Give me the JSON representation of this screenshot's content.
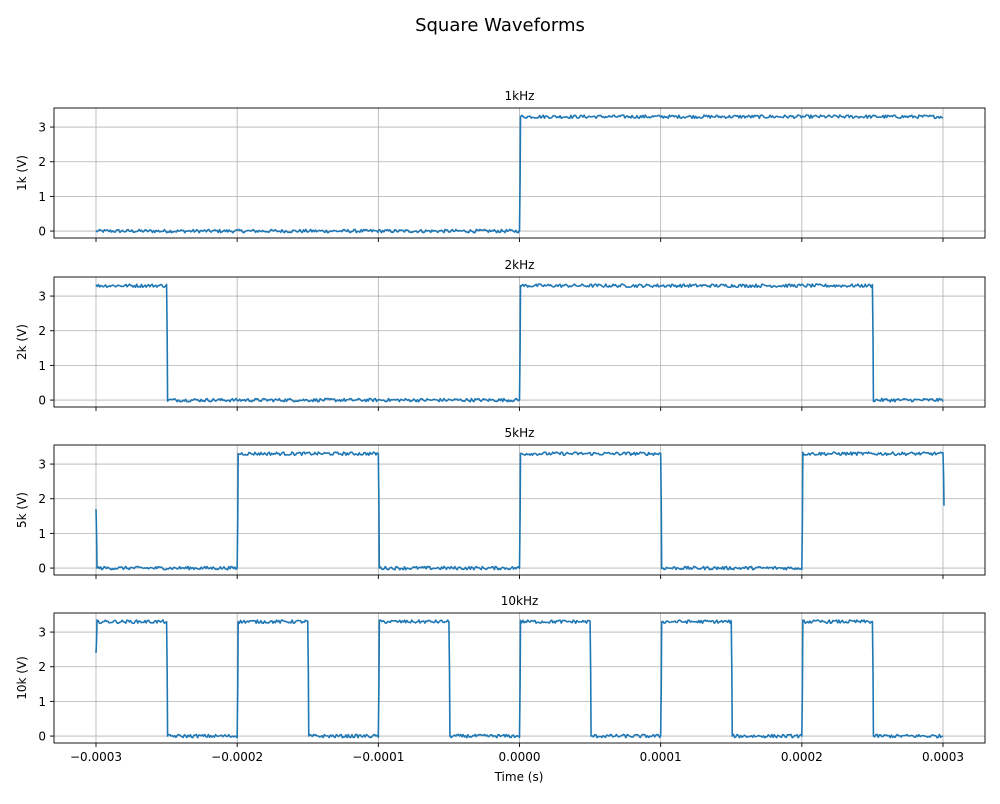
{
  "figure": {
    "title": "Square Waveforms",
    "xlabel": "Time (s)"
  },
  "colors": {
    "line": "#1f77b4",
    "grid": "#b0b0b0",
    "axes": "#000000",
    "background": "#ffffff"
  },
  "chart_data": [
    {
      "type": "line",
      "title": "1kHz",
      "xlabel": "",
      "ylabel": "1k (V)",
      "frequency_hz": 1000,
      "low_v": 0,
      "high_v": 3.3,
      "noise_v": 0.03,
      "xlim": [
        -0.0003,
        0.0003
      ],
      "ylim": [
        -0.2,
        3.55
      ],
      "yticks": [
        0,
        1,
        2,
        3
      ],
      "grid": true,
      "transitions": [
        {
          "t": 0.0,
          "to_v": 3.3
        }
      ],
      "series": [
        {
          "x": [
            -0.0003,
            0.0,
            0.0,
            0.0003
          ],
          "y": [
            0,
            0,
            3.3,
            3.3
          ]
        }
      ]
    },
    {
      "type": "line",
      "title": "2kHz",
      "xlabel": "",
      "ylabel": "2k (V)",
      "frequency_hz": 2000,
      "low_v": 0,
      "high_v": 3.3,
      "noise_v": 0.03,
      "xlim": [
        -0.0003,
        0.0003
      ],
      "ylim": [
        -0.2,
        3.55
      ],
      "yticks": [
        0,
        1,
        2,
        3
      ],
      "grid": true,
      "transitions": [
        {
          "t": -0.00025,
          "to_v": 0
        },
        {
          "t": 0.0,
          "to_v": 3.3
        },
        {
          "t": 0.00025,
          "to_v": 0
        }
      ],
      "series": [
        {
          "x": [
            -0.0003,
            -0.00025,
            -0.00025,
            0.0,
            0.0,
            0.00025,
            0.00025,
            0.0003
          ],
          "y": [
            3.3,
            3.3,
            0,
            0,
            3.3,
            3.3,
            0,
            0
          ]
        }
      ]
    },
    {
      "type": "line",
      "title": "5kHz",
      "xlabel": "",
      "ylabel": "5k (V)",
      "frequency_hz": 5000,
      "low_v": 0,
      "high_v": 3.3,
      "noise_v": 0.03,
      "xlim": [
        -0.0003,
        0.0003
      ],
      "ylim": [
        -0.2,
        3.55
      ],
      "yticks": [
        0,
        1,
        2,
        3
      ],
      "grid": true,
      "transitions": [
        {
          "t": -0.0003,
          "to_v": 0
        },
        {
          "t": -0.0002,
          "to_v": 3.3
        },
        {
          "t": -0.0001,
          "to_v": 0
        },
        {
          "t": 0.0,
          "to_v": 3.3
        },
        {
          "t": 0.0001,
          "to_v": 0
        },
        {
          "t": 0.0002,
          "to_v": 3.3
        },
        {
          "t": 0.0003,
          "to_v": 1.8
        }
      ],
      "series": [
        {
          "x": [
            -0.0003,
            -0.0003,
            -0.0002,
            -0.0002,
            -0.0001,
            -0.0001,
            0.0,
            0.0,
            0.0001,
            0.0001,
            0.0002,
            0.0002,
            0.0003,
            0.0003
          ],
          "y": [
            1.7,
            0,
            0,
            3.3,
            3.3,
            0,
            0,
            3.3,
            3.3,
            0,
            0,
            3.3,
            3.3,
            1.8
          ]
        }
      ]
    },
    {
      "type": "line",
      "title": "10kHz",
      "xlabel": "Time (s)",
      "ylabel": "10k (V)",
      "frequency_hz": 10000,
      "low_v": 0,
      "high_v": 3.3,
      "noise_v": 0.03,
      "xlim": [
        -0.0003,
        0.0003
      ],
      "ylim": [
        -0.2,
        3.55
      ],
      "yticks": [
        0,
        1,
        2,
        3
      ],
      "xticks": [
        "-0.0003",
        "-0.0002",
        "-0.0001",
        "0.0000",
        "0.0001",
        "0.0002",
        "0.0003"
      ],
      "grid": true,
      "transitions": [
        {
          "t": -0.0003,
          "to_v": 3.3
        },
        {
          "t": -0.00025,
          "to_v": 0
        },
        {
          "t": -0.0002,
          "to_v": 3.3
        },
        {
          "t": -0.00015,
          "to_v": 0
        },
        {
          "t": -0.0001,
          "to_v": 3.3
        },
        {
          "t": -5e-05,
          "to_v": 0
        },
        {
          "t": 0.0,
          "to_v": 3.3
        },
        {
          "t": 5e-05,
          "to_v": 0
        },
        {
          "t": 0.0001,
          "to_v": 3.3
        },
        {
          "t": 0.00015,
          "to_v": 0
        },
        {
          "t": 0.0002,
          "to_v": 3.3
        },
        {
          "t": 0.00025,
          "to_v": 0
        }
      ],
      "series": [
        {
          "x": [
            -0.0003,
            -0.0003,
            -0.00025,
            -0.00025,
            -0.0002,
            -0.0002,
            -0.00015,
            -0.00015,
            -0.0001,
            -0.0001,
            -5e-05,
            -5e-05,
            0.0,
            0.0,
            5e-05,
            5e-05,
            0.0001,
            0.0001,
            0.00015,
            0.00015,
            0.0002,
            0.0002,
            0.00025,
            0.00025,
            0.0003
          ],
          "y": [
            2.4,
            3.3,
            3.3,
            0,
            0,
            3.3,
            3.3,
            0,
            0,
            3.3,
            3.3,
            0,
            0,
            3.3,
            3.3,
            0,
            0,
            3.3,
            3.3,
            0,
            0,
            3.3,
            3.3,
            0,
            0
          ]
        }
      ]
    }
  ]
}
